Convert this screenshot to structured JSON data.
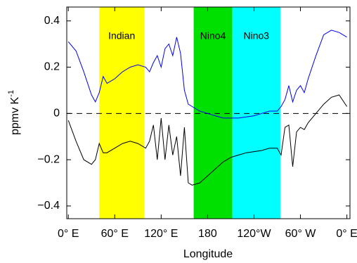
{
  "chart_data": {
    "type": "line",
    "xlabel": "Longitude",
    "ylabel": "ppmv K",
    "ylabel_sup": "-1",
    "xlim": [
      -2,
      364
    ],
    "ylim": [
      -0.455,
      0.46
    ],
    "xticks": [
      {
        "value": 0,
        "label": "0° E"
      },
      {
        "value": 60,
        "label": "60° E"
      },
      {
        "value": 120,
        "label": "120° E"
      },
      180,
      {
        "value": 240,
        "label": "120°W"
      },
      {
        "value": 300,
        "label": "60° W"
      },
      {
        "value": 360,
        "label": "0° E"
      }
    ],
    "yticks": [
      {
        "value": -0.4,
        "label": "−0.4"
      },
      {
        "value": -0.2,
        "label": "−0.2"
      },
      0,
      0.2,
      0.4
    ],
    "hlines": [
      0
    ],
    "regions": [
      {
        "name": "Indian",
        "start": 40,
        "end": 98,
        "color": "#ffff00",
        "text_color": "#000000"
      },
      {
        "name": "Nino4",
        "start": 162,
        "end": 212,
        "color": "#00e000",
        "text_color": "#ffffff"
      },
      {
        "name": "Nino3",
        "start": 212,
        "end": 274,
        "color": "#00ffff",
        "text_color": "#ffffff"
      }
    ],
    "x": [
      0,
      10,
      20,
      30,
      35,
      40,
      45,
      50,
      60,
      70,
      80,
      90,
      100,
      105,
      110,
      115,
      120,
      125,
      130,
      135,
      140,
      145,
      150,
      155,
      160,
      170,
      180,
      190,
      200,
      210,
      220,
      230,
      240,
      250,
      260,
      270,
      275,
      280,
      285,
      290,
      295,
      300,
      305,
      310,
      320,
      330,
      340,
      350,
      360
    ],
    "series": [
      {
        "color": "#0000ee",
        "values": [
          0.31,
          0.27,
          0.18,
          0.08,
          0.05,
          0.09,
          0.16,
          0.13,
          0.15,
          0.18,
          0.2,
          0.21,
          0.2,
          0.18,
          0.22,
          0.25,
          0.2,
          0.28,
          0.3,
          0.25,
          0.33,
          0.26,
          0.1,
          0.04,
          0.03,
          0.01,
          0.0,
          -0.01,
          -0.02,
          -0.02,
          -0.02,
          -0.015,
          -0.01,
          0.0,
          0.01,
          0.01,
          0.03,
          0.06,
          0.12,
          0.05,
          0.1,
          0.12,
          0.09,
          0.15,
          0.25,
          0.34,
          0.36,
          0.35,
          0.33
        ]
      },
      {
        "color": "#000000",
        "values": [
          -0.03,
          -0.12,
          -0.2,
          -0.22,
          -0.2,
          -0.13,
          -0.17,
          -0.17,
          -0.15,
          -0.13,
          -0.12,
          -0.13,
          -0.15,
          -0.12,
          -0.05,
          -0.2,
          -0.02,
          -0.2,
          -0.05,
          -0.18,
          -0.1,
          -0.27,
          -0.06,
          -0.3,
          -0.31,
          -0.3,
          -0.27,
          -0.24,
          -0.21,
          -0.19,
          -0.18,
          -0.17,
          -0.165,
          -0.16,
          -0.15,
          -0.15,
          -0.18,
          -0.06,
          -0.05,
          -0.23,
          -0.08,
          -0.06,
          -0.07,
          -0.04,
          0.0,
          0.04,
          0.07,
          0.08,
          0.03
        ]
      }
    ]
  }
}
